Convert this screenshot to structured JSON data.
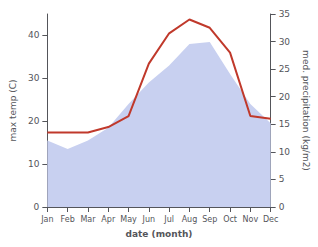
{
  "chart_data": {
    "type": "line",
    "xlabel": "date (month)",
    "ylabel": "max temp (C)",
    "y2label": "med. precipitation (kg/m2)",
    "categories": [
      "Jan",
      "Feb",
      "Mar",
      "Apr",
      "May",
      "Jun",
      "Jul",
      "Aug",
      "Sep",
      "Oct",
      "Nov",
      "Dec"
    ],
    "series": [
      {
        "type": "area",
        "color": "#c8d0f0",
        "values": [
          15.5,
          13.5,
          15.5,
          18.5,
          24.0,
          29.0,
          33.0,
          38.0,
          38.5,
          31.0,
          24.0,
          19.5
        ]
      },
      {
        "type": "line",
        "color": "#c0392b",
        "axis": "y2",
        "values": [
          13.5,
          13.5,
          13.5,
          14.5,
          16.5,
          26.0,
          31.5,
          34.0,
          32.5,
          28.0,
          16.5,
          16.0
        ]
      }
    ],
    "ylim": [
      0,
      45
    ],
    "yticks": [
      0,
      10,
      20,
      30,
      40
    ],
    "y2lim": [
      0,
      35
    ],
    "y2ticks": [
      0,
      5,
      10,
      15,
      20,
      25,
      30,
      35
    ],
    "grid": false
  }
}
